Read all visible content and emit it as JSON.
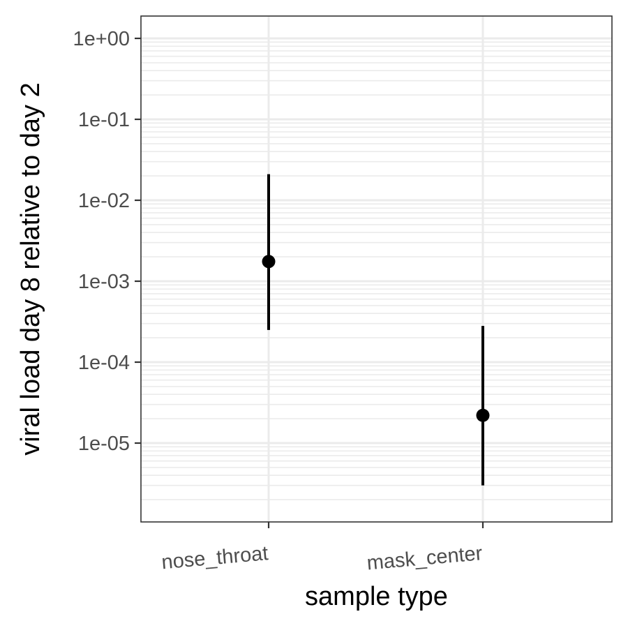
{
  "chart_data": {
    "type": "scatter",
    "xlabel": "sample type",
    "ylabel": "viral load day 8 relative to day 2",
    "categories": [
      "nose_throat",
      "mask_center"
    ],
    "yscale": "log10",
    "ylim": [
      1.1e-06,
      2.0
    ],
    "y_ticks": [
      {
        "value": 1,
        "label": "1e+00"
      },
      {
        "value": 0.1,
        "label": "1e-01"
      },
      {
        "value": 0.01,
        "label": "1e-02"
      },
      {
        "value": 0.001,
        "label": "1e-03"
      },
      {
        "value": 0.0001,
        "label": "1e-04"
      },
      {
        "value": 1e-05,
        "label": "1e-05"
      }
    ],
    "points": [
      {
        "category": "nose_throat",
        "y": 0.00175,
        "lower": 0.00025,
        "upper": 0.021
      },
      {
        "category": "mask_center",
        "y": 2.2e-05,
        "lower": 3e-06,
        "upper": 0.00028
      }
    ],
    "grid": true,
    "legend": "none",
    "colors": {
      "point": "#000000",
      "grid": "#ebebeb",
      "panel_border": "#333333",
      "tick_text": "#4d4d4d"
    }
  }
}
